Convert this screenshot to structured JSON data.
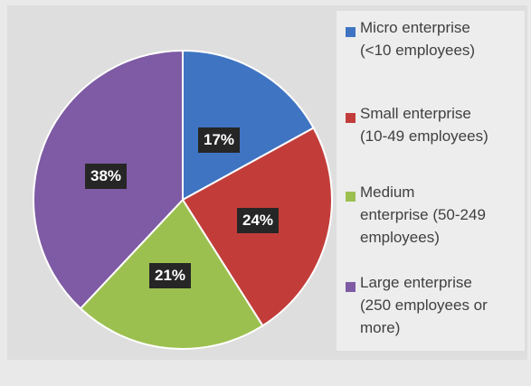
{
  "chart_data": {
    "type": "pie",
    "title": "",
    "start_angle_deg": 0,
    "direction": "clockwise",
    "legend_position": "right",
    "slices": [
      {
        "label": "Micro enterprise (<10 employees)",
        "legend_text": "Micro enterprise\n(<10 employees)",
        "value": 17,
        "data_label": "17%",
        "color": "#3f74c3"
      },
      {
        "label": "Small enterprise (10-49 employees)",
        "legend_text": "Small enterprise\n(10-49 employees)",
        "value": 24,
        "data_label": "24%",
        "color": "#c23d3a"
      },
      {
        "label": "Medium enterprise (50-249 employees)",
        "legend_text": "Medium\nenterprise (50-249\nemployees)",
        "value": 21,
        "data_label": "21%",
        "color": "#9cc04f"
      },
      {
        "label": "Large enterprise (250 employees or more)",
        "legend_text": "Large enterprise\n(250 employees or\nmore)",
        "value": 38,
        "data_label": "38%",
        "color": "#7e5ba4"
      }
    ]
  }
}
